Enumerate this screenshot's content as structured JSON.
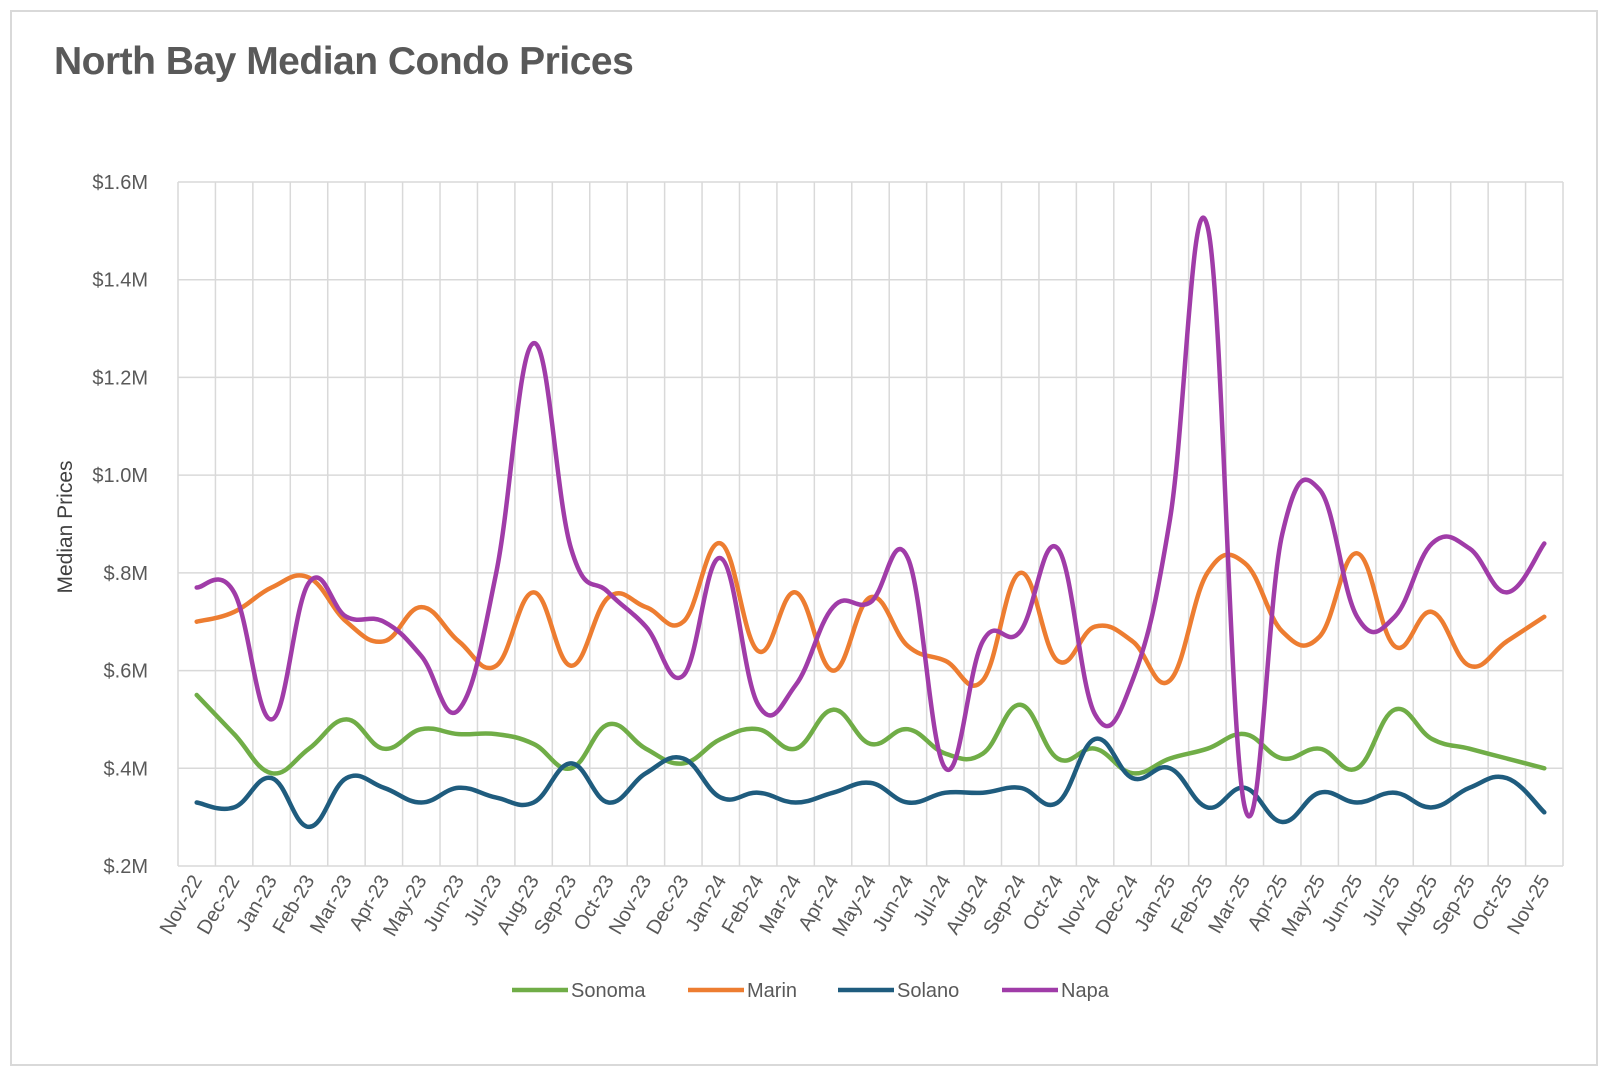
{
  "chart_data": {
    "type": "line",
    "title": "North Bay Median Condo Prices",
    "ylabel": "Median Prices",
    "xlabel": "",
    "ylim": [
      0.2,
      1.6
    ],
    "ytick_values": [
      0.2,
      0.4,
      0.6,
      0.8,
      1.0,
      1.2,
      1.4,
      1.6
    ],
    "ytick_labels": [
      "$.2M",
      "$.4M",
      "$.6M",
      "$.8M",
      "$1.0M",
      "$1.2M",
      "$1.4M",
      "$1.6M"
    ],
    "grid": true,
    "legend_position": "bottom",
    "categories": [
      "Nov-22",
      "Dec-22",
      "Jan-23",
      "Feb-23",
      "Mar-23",
      "Apr-23",
      "May-23",
      "Jun-23",
      "Jul-23",
      "Aug-23",
      "Sep-23",
      "Oct-23",
      "Nov-23",
      "Dec-23",
      "Jan-24",
      "Feb-24",
      "Mar-24",
      "Apr-24",
      "May-24",
      "Jun-24",
      "Jul-24",
      "Aug-24",
      "Sep-24",
      "Oct-24",
      "Nov-24",
      "Dec-24",
      "Jan-25",
      "Feb-25",
      "Mar-25",
      "Apr-25",
      "May-25",
      "Jun-25",
      "Jul-25",
      "Aug-25",
      "Sep-25",
      "Oct-25",
      "Nov-25"
    ],
    "series": [
      {
        "name": "Sonoma",
        "color": "#70ad47",
        "values": [
          0.55,
          0.47,
          0.39,
          0.44,
          0.5,
          0.44,
          0.48,
          0.47,
          0.47,
          0.45,
          0.4,
          0.49,
          0.44,
          0.41,
          0.46,
          0.48,
          0.44,
          0.52,
          0.45,
          0.48,
          0.43,
          0.43,
          0.53,
          0.42,
          0.44,
          0.39,
          0.42,
          0.44,
          0.47,
          0.42,
          0.44,
          0.4,
          0.52,
          0.46,
          0.44,
          0.42,
          0.4
        ]
      },
      {
        "name": "Marin",
        "color": "#ed7d31",
        "values": [
          0.7,
          0.72,
          0.77,
          0.79,
          0.7,
          0.66,
          0.73,
          0.66,
          0.61,
          0.76,
          0.61,
          0.75,
          0.73,
          0.7,
          0.86,
          0.64,
          0.76,
          0.6,
          0.75,
          0.65,
          0.62,
          0.58,
          0.8,
          0.62,
          0.69,
          0.66,
          0.58,
          0.8,
          0.82,
          0.68,
          0.67,
          0.84,
          0.65,
          0.72,
          0.61,
          0.66,
          0.71
        ]
      },
      {
        "name": "Solano",
        "color": "#1f5c7e",
        "values": [
          0.33,
          0.32,
          0.38,
          0.28,
          0.38,
          0.36,
          0.33,
          0.36,
          0.34,
          0.33,
          0.41,
          0.33,
          0.39,
          0.42,
          0.34,
          0.35,
          0.33,
          0.35,
          0.37,
          0.33,
          0.35,
          0.35,
          0.36,
          0.33,
          0.46,
          0.38,
          0.4,
          0.32,
          0.36,
          0.29,
          0.35,
          0.33,
          0.35,
          0.32,
          0.36,
          0.38,
          0.31
        ]
      },
      {
        "name": "Napa",
        "color": "#a03ca8",
        "values": [
          0.77,
          0.76,
          0.5,
          0.78,
          0.71,
          0.7,
          0.63,
          0.52,
          0.8,
          1.27,
          0.85,
          0.76,
          0.69,
          0.59,
          0.83,
          0.53,
          0.57,
          0.73,
          0.74,
          0.83,
          0.4,
          0.66,
          0.68,
          0.85,
          0.51,
          0.58,
          0.91,
          1.51,
          0.32,
          0.88,
          0.97,
          0.71,
          0.71,
          0.86,
          0.85,
          0.76,
          0.86
        ]
      }
    ]
  }
}
